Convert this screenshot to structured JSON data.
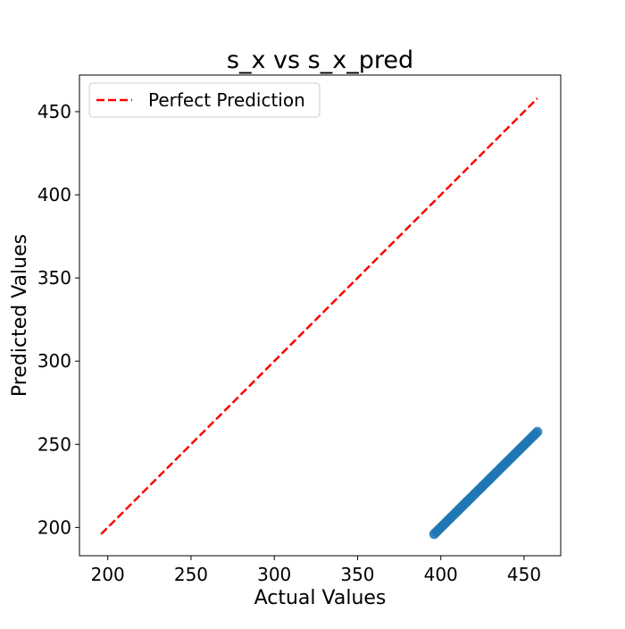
{
  "chart_data": {
    "type": "scatter",
    "title": "s_x vs s_x_pred",
    "xlabel": "Actual Values",
    "ylabel": "Predicted Values",
    "xlim": [
      183,
      472
    ],
    "ylim": [
      183,
      472
    ],
    "xticks": [
      200,
      250,
      300,
      350,
      400,
      450
    ],
    "yticks": [
      200,
      250,
      300,
      350,
      400,
      450
    ],
    "grid": false,
    "legend": {
      "placement": "top-left",
      "entries": [
        "Perfect Prediction"
      ]
    },
    "reference_line": {
      "name": "Perfect Prediction",
      "color": "#ff0000",
      "style": "dashed",
      "x": [
        196,
        458
      ],
      "y": [
        196,
        458
      ]
    },
    "series": [
      {
        "color": "#1f77b4",
        "x_start": 396,
        "x_end": 458,
        "y_start": 196,
        "y_end": 257.5,
        "count": 60
      }
    ]
  }
}
